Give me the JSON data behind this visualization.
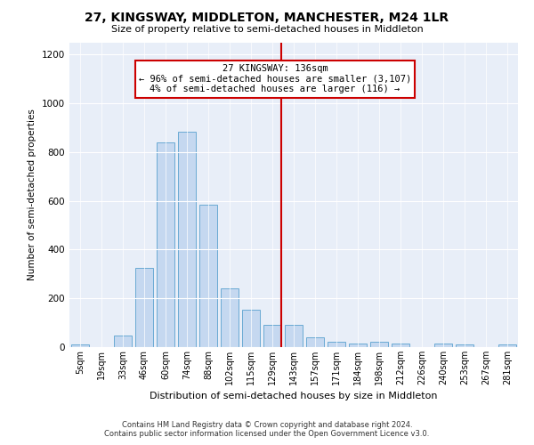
{
  "title": "27, KINGSWAY, MIDDLETON, MANCHESTER, M24 1LR",
  "subtitle": "Size of property relative to semi-detached houses in Middleton",
  "xlabel": "Distribution of semi-detached houses by size in Middleton",
  "ylabel": "Number of semi-detached properties",
  "footnote1": "Contains HM Land Registry data © Crown copyright and database right 2024.",
  "footnote2": "Contains public sector information licensed under the Open Government Licence v3.0.",
  "annotation_title": "27 KINGSWAY: 136sqm",
  "annotation_line1": "← 96% of semi-detached houses are smaller (3,107)",
  "annotation_line2": "4% of semi-detached houses are larger (116) →",
  "property_bin_index": 9,
  "bar_labels": [
    "5sqm",
    "19sqm",
    "33sqm",
    "46sqm",
    "60sqm",
    "74sqm",
    "88sqm",
    "102sqm",
    "115sqm",
    "129sqm",
    "143sqm",
    "157sqm",
    "171sqm",
    "184sqm",
    "198sqm",
    "212sqm",
    "226sqm",
    "240sqm",
    "253sqm",
    "267sqm",
    "281sqm"
  ],
  "bar_heights": [
    10,
    0,
    48,
    325,
    840,
    885,
    585,
    240,
    155,
    90,
    90,
    40,
    22,
    13,
    22,
    13,
    0,
    13,
    10,
    0,
    10
  ],
  "bar_color": "#c5d8f0",
  "bar_edge_color": "#6aaad4",
  "vline_color": "#cc0000",
  "background_color": "#e8eef8",
  "ylim": [
    0,
    1250
  ],
  "yticks": [
    0,
    200,
    400,
    600,
    800,
    1000,
    1200
  ],
  "title_fontsize": 10,
  "subtitle_fontsize": 8,
  "xlabel_fontsize": 8,
  "ylabel_fontsize": 7.5,
  "tick_fontsize": 7,
  "footnote_fontsize": 6,
  "annotation_fontsize": 7.5
}
